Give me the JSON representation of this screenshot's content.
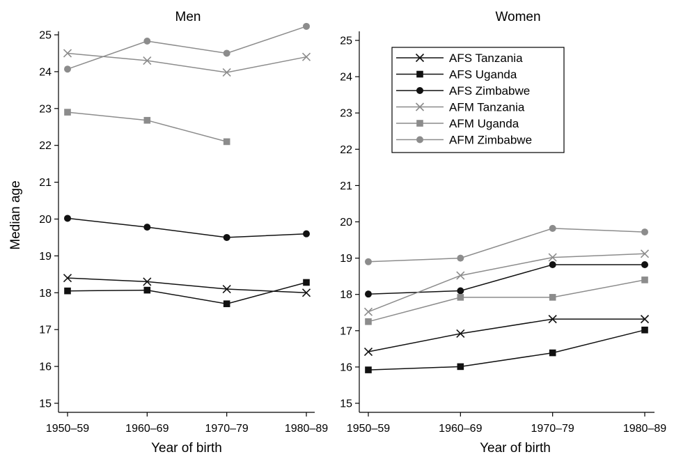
{
  "chart_data": [
    {
      "type": "line",
      "title": "Men",
      "xlabel": "Year of birth",
      "ylabel": "Median age",
      "categories": [
        "1950–59",
        "1960–69",
        "1970–79",
        "1980–89"
      ],
      "ylim": [
        15,
        25
      ],
      "yticks": [
        "15",
        "16",
        "17",
        "18",
        "19",
        "20",
        "21",
        "22",
        "23",
        "24",
        "25"
      ],
      "grid": false,
      "series": [
        {
          "name": "AFS Tanzania",
          "marker": "x",
          "color": "#111111",
          "values": [
            18.4,
            18.3,
            18.1,
            18.0
          ]
        },
        {
          "name": "AFS Uganda",
          "marker": "square",
          "color": "#111111",
          "values": [
            18.05,
            18.07,
            17.7,
            18.28
          ]
        },
        {
          "name": "AFS Zimbabwe",
          "marker": "circle",
          "color": "#111111",
          "values": [
            20.02,
            19.78,
            19.5,
            19.6
          ]
        },
        {
          "name": "AFM Tanzania",
          "marker": "x",
          "color": "#8c8c8c",
          "values": [
            24.5,
            24.3,
            23.98,
            24.4
          ]
        },
        {
          "name": "AFM Uganda",
          "marker": "square",
          "color": "#8c8c8c",
          "values": [
            22.9,
            22.68,
            22.1,
            null
          ]
        },
        {
          "name": "AFM Zimbabwe",
          "marker": "circle",
          "color": "#8c8c8c",
          "values": [
            24.07,
            24.83,
            24.5,
            25.23
          ]
        }
      ]
    },
    {
      "type": "line",
      "title": "Women",
      "xlabel": "Year of birth",
      "ylabel": "",
      "categories": [
        "1950–59",
        "1960–69",
        "1970–79",
        "1980–89"
      ],
      "ylim": [
        15,
        25
      ],
      "yticks": [
        "15",
        "16",
        "17",
        "18",
        "19",
        "20",
        "21",
        "22",
        "23",
        "24",
        "25"
      ],
      "grid": false,
      "legend": "top-left",
      "series": [
        {
          "name": "AFS Tanzania",
          "marker": "x",
          "color": "#111111",
          "values": [
            16.42,
            16.92,
            17.32,
            17.32
          ]
        },
        {
          "name": "AFS Uganda",
          "marker": "square",
          "color": "#111111",
          "values": [
            15.92,
            16.01,
            16.39,
            17.02
          ]
        },
        {
          "name": "AFS Zimbabwe",
          "marker": "circle",
          "color": "#111111",
          "values": [
            18.01,
            18.1,
            18.82,
            18.82
          ]
        },
        {
          "name": "AFM Tanzania",
          "marker": "x",
          "color": "#8c8c8c",
          "values": [
            17.52,
            18.52,
            19.02,
            19.12
          ]
        },
        {
          "name": "AFM Uganda",
          "marker": "square",
          "color": "#8c8c8c",
          "values": [
            17.25,
            17.92,
            17.92,
            18.4
          ]
        },
        {
          "name": "AFM Zimbabwe",
          "marker": "circle",
          "color": "#8c8c8c",
          "values": [
            18.9,
            19.0,
            19.82,
            19.72
          ]
        }
      ]
    }
  ]
}
